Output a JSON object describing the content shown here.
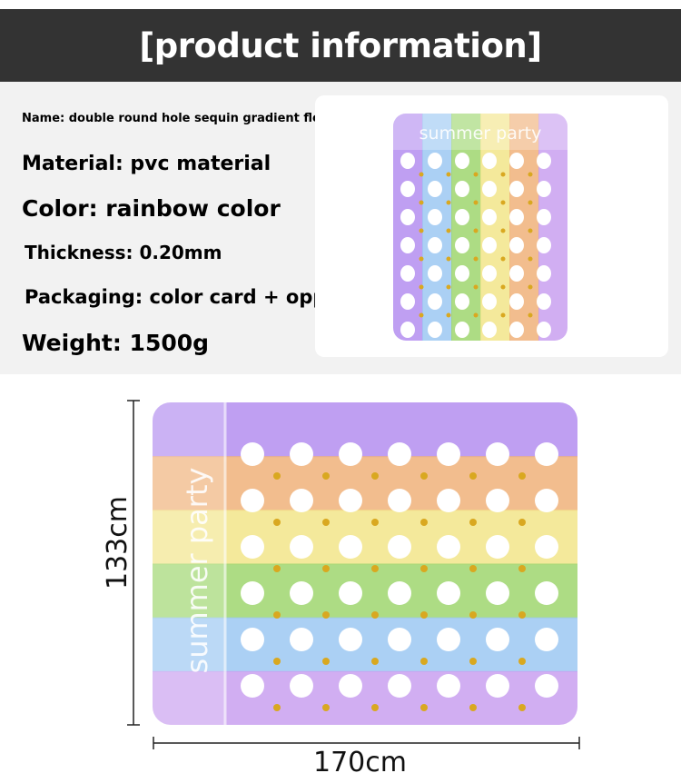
{
  "header": {
    "title": "[product information]"
  },
  "specs": {
    "name": "Name: double round hole sequin gradient floating row",
    "material": "Material: pvc material",
    "color": "Color: rainbow color",
    "thickness": "Thickness: 0.20mm",
    "packaging": "Packaging: color card + opp bag",
    "weight": "Weight: 1500g"
  },
  "product": {
    "print_text": "summer party",
    "stripe_colors": [
      "#b48ef0",
      "#9cc8f2",
      "#9fd66e",
      "#f2e58a",
      "#f0b27a",
      "#c9a0f0"
    ],
    "sequin_color": "#d9a820"
  },
  "dimensions": {
    "height": "133cm",
    "width": "170cm"
  }
}
